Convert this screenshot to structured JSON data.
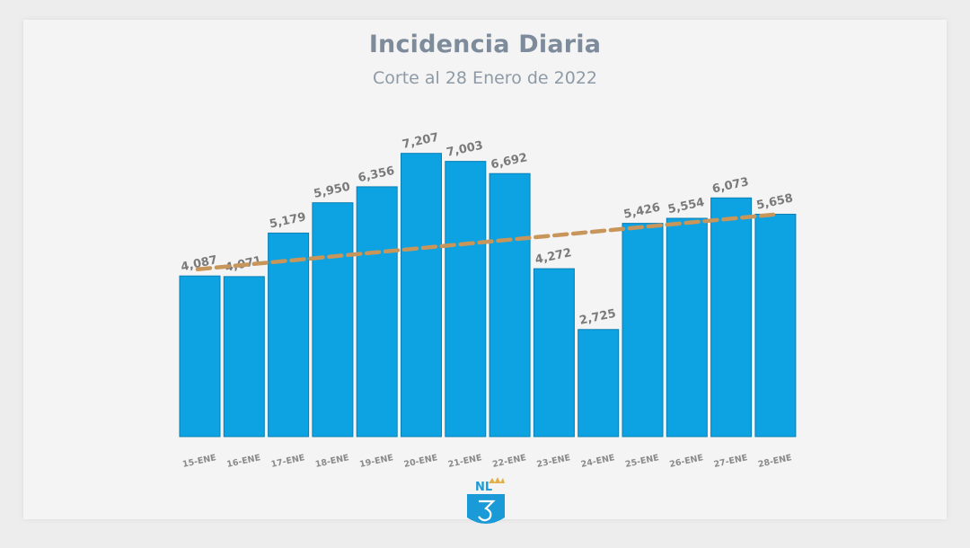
{
  "header": {
    "title": "Incidencia Diaria",
    "subtitle": "Corte al 28 Enero de 2022"
  },
  "logo": {
    "text": "NL"
  },
  "colors": {
    "bar": "#0da2e1",
    "trend": "#c8955a"
  },
  "chart_data": {
    "type": "bar",
    "title": "Incidencia Diaria",
    "subtitle": "Corte al 28 Enero de 2022",
    "xlabel": "",
    "ylabel": "",
    "ylim": [
      0,
      8000
    ],
    "categories": [
      "15-ENE",
      "16-ENE",
      "17-ENE",
      "18-ENE",
      "19-ENE",
      "20-ENE",
      "21-ENE",
      "22-ENE",
      "23-ENE",
      "24-ENE",
      "25-ENE",
      "26-ENE",
      "27-ENE",
      "28-ENE"
    ],
    "values": [
      4087,
      4071,
      5179,
      5950,
      6356,
      7207,
      7003,
      6692,
      4272,
      2725,
      5426,
      5554,
      6073,
      5658
    ],
    "value_labels": [
      "4,087",
      "4,071",
      "5,179",
      "5,950",
      "6,356",
      "7,207",
      "7,003",
      "6,692",
      "4,272",
      "2,725",
      "5,426",
      "5,554",
      "6,073",
      "5,658"
    ],
    "trendline": {
      "style": "dashed",
      "start": 5080,
      "end": 5670
    },
    "grid": false,
    "legend": "none"
  }
}
